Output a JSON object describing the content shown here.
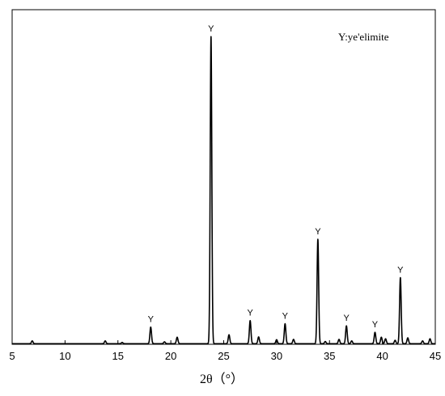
{
  "chart_data": {
    "type": "line",
    "title": "",
    "xlabel": "2θ（°）",
    "ylabel": "",
    "xlim": [
      5,
      45
    ],
    "ylim": [
      0,
      1
    ],
    "x_ticks": [
      5,
      10,
      15,
      20,
      25,
      30,
      35,
      40,
      45
    ],
    "grid": false,
    "legend_text": "Y:ye'elimite",
    "legend_placement": "top-right",
    "peak_marker": "Y",
    "labeled_peaks": [
      18.1,
      23.8,
      27.5,
      30.8,
      33.9,
      36.6,
      39.3,
      41.7
    ],
    "peaks": [
      {
        "x": 6.9,
        "y": 0.009
      },
      {
        "x": 13.8,
        "y": 0.009
      },
      {
        "x": 15.4,
        "y": 0.004
      },
      {
        "x": 18.1,
        "y": 0.054
      },
      {
        "x": 19.4,
        "y": 0.006
      },
      {
        "x": 20.6,
        "y": 0.021
      },
      {
        "x": 23.8,
        "y": 1.0
      },
      {
        "x": 25.5,
        "y": 0.029
      },
      {
        "x": 27.5,
        "y": 0.075
      },
      {
        "x": 28.3,
        "y": 0.022
      },
      {
        "x": 30.0,
        "y": 0.013
      },
      {
        "x": 30.8,
        "y": 0.065
      },
      {
        "x": 31.6,
        "y": 0.014
      },
      {
        "x": 33.9,
        "y": 0.34
      },
      {
        "x": 34.6,
        "y": 0.007
      },
      {
        "x": 35.9,
        "y": 0.014
      },
      {
        "x": 36.6,
        "y": 0.058
      },
      {
        "x": 37.1,
        "y": 0.009
      },
      {
        "x": 39.3,
        "y": 0.037
      },
      {
        "x": 39.9,
        "y": 0.021
      },
      {
        "x": 40.3,
        "y": 0.016
      },
      {
        "x": 41.2,
        "y": 0.011
      },
      {
        "x": 41.7,
        "y": 0.215
      },
      {
        "x": 42.4,
        "y": 0.019
      },
      {
        "x": 43.8,
        "y": 0.009
      },
      {
        "x": 44.5,
        "y": 0.016
      }
    ]
  }
}
